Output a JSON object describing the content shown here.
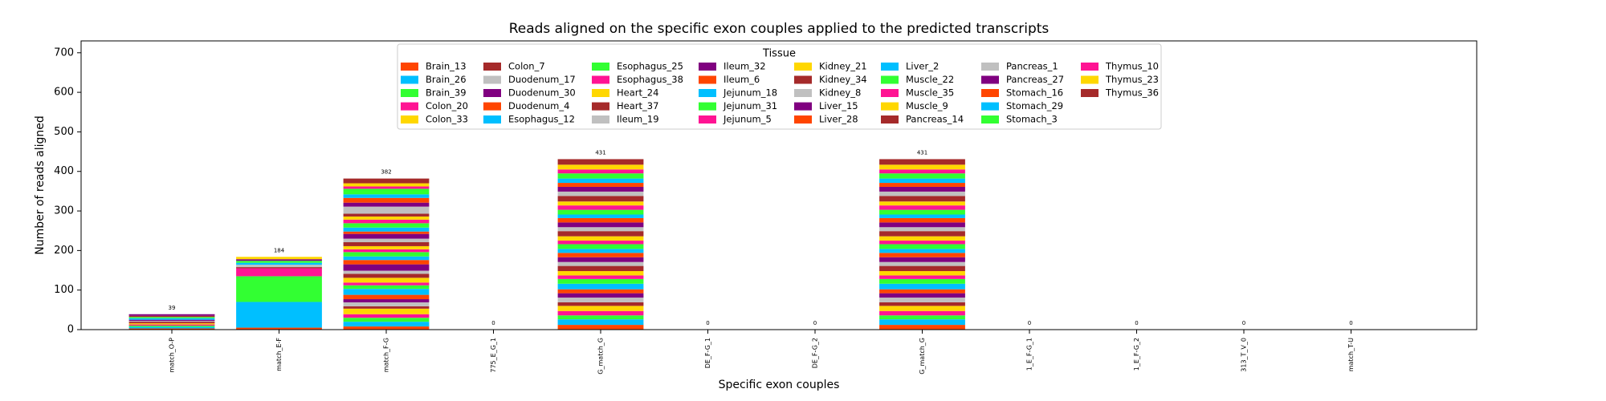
{
  "chart_data": {
    "type": "bar",
    "stacked": true,
    "title": "Reads aligned on the specific exon couples applied to the predicted transcripts",
    "xlabel": "Specific exon couples",
    "ylabel": "Number of reads aligned",
    "categories": [
      "match_O-P",
      "match_E-F",
      "match_F-G",
      "775_E_G_1",
      "G_match_G",
      "DE_F-G_1",
      "DE_F-G_2",
      "G_match_G",
      "1_E_F-G_1",
      "1_E_F-G_2",
      "313_T_V_0",
      "match_T-U"
    ],
    "totals": [
      39,
      184,
      382,
      0,
      431,
      0,
      0,
      431,
      0,
      0,
      0,
      0
    ],
    "ylim": [
      0,
      730
    ],
    "yticks": [
      0,
      100,
      200,
      300,
      400,
      500,
      600,
      700
    ],
    "grid": false,
    "legend_title": "Tissue",
    "legend_location": "upper center",
    "series": [
      {
        "name": "Brain_13",
        "color": "#ff4500",
        "values": [
          3,
          5,
          8,
          0,
          12,
          0,
          0,
          12,
          0,
          0,
          0,
          0
        ]
      },
      {
        "name": "Brain_26",
        "color": "#00bfff",
        "values": [
          4,
          0,
          12,
          0,
          14,
          0,
          0,
          14,
          0,
          0,
          0,
          0
        ]
      },
      {
        "name": "Brain_39",
        "color": "#32ff32",
        "values": [
          3,
          0,
          10,
          0,
          10,
          0,
          0,
          10,
          0,
          0,
          0,
          0
        ]
      },
      {
        "name": "Colon_20",
        "color": "#ff1493",
        "values": [
          3,
          0,
          9,
          0,
          11,
          0,
          0,
          11,
          0,
          0,
          0,
          0
        ]
      },
      {
        "name": "Colon_33",
        "color": "#ffd700",
        "values": [
          3,
          0,
          14,
          0,
          13,
          0,
          0,
          13,
          0,
          0,
          0,
          0
        ]
      },
      {
        "name": "Colon_7",
        "color": "#a52a2a",
        "values": [
          4,
          0,
          6,
          0,
          9,
          0,
          0,
          9,
          0,
          0,
          0,
          0
        ]
      },
      {
        "name": "Duodenum_17",
        "color": "#c0c0c0",
        "values": [
          2,
          0,
          10,
          0,
          12,
          0,
          0,
          12,
          0,
          0,
          0,
          0
        ]
      },
      {
        "name": "Duodenum_30",
        "color": "#800080",
        "values": [
          3,
          0,
          8,
          0,
          11,
          0,
          0,
          11,
          0,
          0,
          0,
          0
        ]
      },
      {
        "name": "Duodenum_4",
        "color": "#ff4500",
        "values": [
          0,
          0,
          11,
          0,
          10,
          0,
          0,
          10,
          0,
          0,
          0,
          0
        ]
      },
      {
        "name": "Esophagus_12",
        "color": "#00bfff",
        "values": [
          4,
          65,
          15,
          0,
          14,
          0,
          0,
          14,
          0,
          0,
          0,
          0
        ]
      },
      {
        "name": "Esophagus_25",
        "color": "#32ff32",
        "values": [
          3,
          65,
          9,
          0,
          12,
          0,
          0,
          12,
          0,
          0,
          0,
          0
        ]
      },
      {
        "name": "Esophagus_38",
        "color": "#ff1493",
        "values": [
          0,
          20,
          7,
          0,
          9,
          0,
          0,
          9,
          0,
          0,
          0,
          0
        ]
      },
      {
        "name": "Heart_24",
        "color": "#ffd700",
        "values": [
          0,
          0,
          12,
          0,
          11,
          0,
          0,
          11,
          0,
          0,
          0,
          0
        ]
      },
      {
        "name": "Heart_37",
        "color": "#a52a2a",
        "values": [
          3,
          3,
          10,
          0,
          13,
          0,
          0,
          13,
          0,
          0,
          0,
          0
        ]
      },
      {
        "name": "Ileum_19",
        "color": "#c0c0c0",
        "values": [
          0,
          6,
          8,
          0,
          10,
          0,
          0,
          10,
          0,
          0,
          0,
          0
        ]
      },
      {
        "name": "Ileum_32",
        "color": "#800080",
        "values": [
          4,
          0,
          16,
          0,
          12,
          0,
          0,
          12,
          0,
          0,
          0,
          0
        ]
      },
      {
        "name": "Ileum_6",
        "color": "#ff4500",
        "values": [
          0,
          0,
          11,
          0,
          11,
          0,
          0,
          11,
          0,
          0,
          0,
          0
        ]
      },
      {
        "name": "Jejunum_18",
        "color": "#00bfff",
        "values": [
          0,
          5,
          9,
          0,
          10,
          0,
          0,
          10,
          0,
          0,
          0,
          0
        ]
      },
      {
        "name": "Jejunum_31",
        "color": "#32ff32",
        "values": [
          0,
          5,
          11,
          0,
          12,
          0,
          0,
          12,
          0,
          0,
          0,
          0
        ]
      },
      {
        "name": "Jejunum_5",
        "color": "#ff1493",
        "values": [
          0,
          0,
          7,
          0,
          9,
          0,
          0,
          9,
          0,
          0,
          0,
          0
        ]
      },
      {
        "name": "Kidney_21",
        "color": "#ffd700",
        "values": [
          0,
          0,
          8,
          0,
          11,
          0,
          0,
          11,
          0,
          0,
          0,
          0
        ]
      },
      {
        "name": "Kidney_34",
        "color": "#a52a2a",
        "values": [
          0,
          0,
          10,
          0,
          13,
          0,
          0,
          13,
          0,
          0,
          0,
          0
        ]
      },
      {
        "name": "Kidney_8",
        "color": "#c0c0c0",
        "values": [
          0,
          0,
          9,
          0,
          10,
          0,
          0,
          10,
          0,
          0,
          0,
          0
        ]
      },
      {
        "name": "Liver_15",
        "color": "#800080",
        "values": [
          0,
          4,
          12,
          0,
          12,
          0,
          0,
          12,
          0,
          0,
          0,
          0
        ]
      },
      {
        "name": "Liver_28",
        "color": "#ff4500",
        "values": [
          0,
          0,
          6,
          0,
          11,
          0,
          0,
          11,
          0,
          0,
          0,
          0
        ]
      },
      {
        "name": "Liver_2",
        "color": "#00bfff",
        "values": [
          0,
          0,
          10,
          0,
          9,
          0,
          0,
          9,
          0,
          0,
          0,
          0
        ]
      },
      {
        "name": "Muscle_22",
        "color": "#32ff32",
        "values": [
          0,
          0,
          11,
          0,
          12,
          0,
          0,
          12,
          0,
          0,
          0,
          0
        ]
      },
      {
        "name": "Muscle_35",
        "color": "#ff1493",
        "values": [
          0,
          0,
          9,
          0,
          11,
          0,
          0,
          11,
          0,
          0,
          0,
          0
        ]
      },
      {
        "name": "Muscle_9",
        "color": "#ffd700",
        "values": [
          0,
          6,
          8,
          0,
          10,
          0,
          0,
          10,
          0,
          0,
          0,
          0
        ]
      },
      {
        "name": "Pancreas_14",
        "color": "#a52a2a",
        "values": [
          0,
          0,
          7,
          0,
          14,
          0,
          0,
          14,
          0,
          0,
          0,
          0
        ]
      },
      {
        "name": "Pancreas_1",
        "color": "#c0c0c0",
        "values": [
          0,
          0,
          18,
          0,
          11,
          0,
          0,
          11,
          0,
          0,
          0,
          0
        ]
      },
      {
        "name": "Pancreas_27",
        "color": "#800080",
        "values": [
          0,
          0,
          10,
          0,
          12,
          0,
          0,
          12,
          0,
          0,
          0,
          0
        ]
      },
      {
        "name": "Stomach_16",
        "color": "#ff4500",
        "values": [
          0,
          0,
          12,
          0,
          10,
          0,
          0,
          10,
          0,
          0,
          0,
          0
        ]
      },
      {
        "name": "Stomach_29",
        "color": "#00bfff",
        "values": [
          0,
          0,
          9,
          0,
          11,
          0,
          0,
          11,
          0,
          0,
          0,
          0
        ]
      },
      {
        "name": "Stomach_3",
        "color": "#32ff32",
        "values": [
          0,
          0,
          14,
          0,
          13,
          0,
          0,
          13,
          0,
          0,
          0,
          0
        ]
      },
      {
        "name": "Thymus_10",
        "color": "#ff1493",
        "values": [
          0,
          0,
          6,
          0,
          10,
          0,
          0,
          10,
          0,
          0,
          0,
          0
        ]
      },
      {
        "name": "Thymus_23",
        "color": "#ffd700",
        "values": [
          0,
          0,
          8,
          0,
          12,
          0,
          0,
          12,
          0,
          0,
          0,
          0
        ]
      },
      {
        "name": "Thymus_36",
        "color": "#a52a2a",
        "values": [
          0,
          0,
          12,
          0,
          14,
          0,
          0,
          14,
          0,
          0,
          0,
          0
        ]
      }
    ]
  }
}
